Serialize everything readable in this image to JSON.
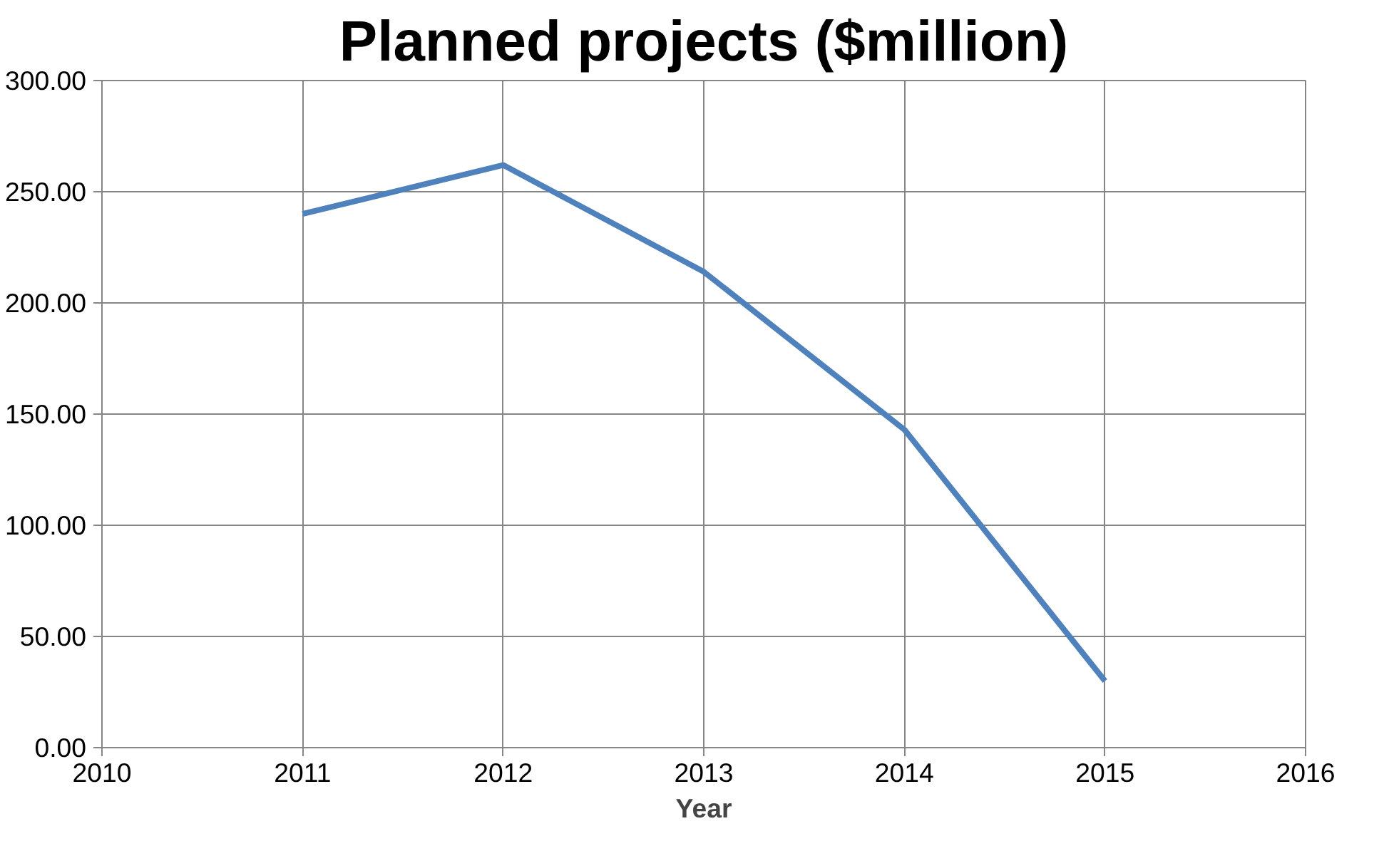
{
  "chart_data": {
    "type": "line",
    "title": "Planned projects ($million)",
    "xlabel": "Year",
    "x": [
      2011,
      2012,
      2013,
      2014,
      2015
    ],
    "series": [
      {
        "color": "#4f81bd",
        "values": [
          240,
          262,
          214,
          143,
          30
        ]
      }
    ],
    "xlim": [
      2010,
      2016
    ],
    "xticks": [
      2010,
      2011,
      2012,
      2013,
      2014,
      2015,
      2016
    ],
    "ylim": [
      0,
      300
    ],
    "yticks": [
      {
        "value": 0,
        "label": "0.00"
      },
      {
        "value": 50,
        "label": "50.00"
      },
      {
        "value": 100,
        "label": "100.00"
      },
      {
        "value": 150,
        "label": "150.00"
      },
      {
        "value": 200,
        "label": "200.00"
      },
      {
        "value": 250,
        "label": "250.00"
      },
      {
        "value": 300,
        "label": "300.00"
      }
    ],
    "grid": true,
    "line_style": "solid"
  }
}
